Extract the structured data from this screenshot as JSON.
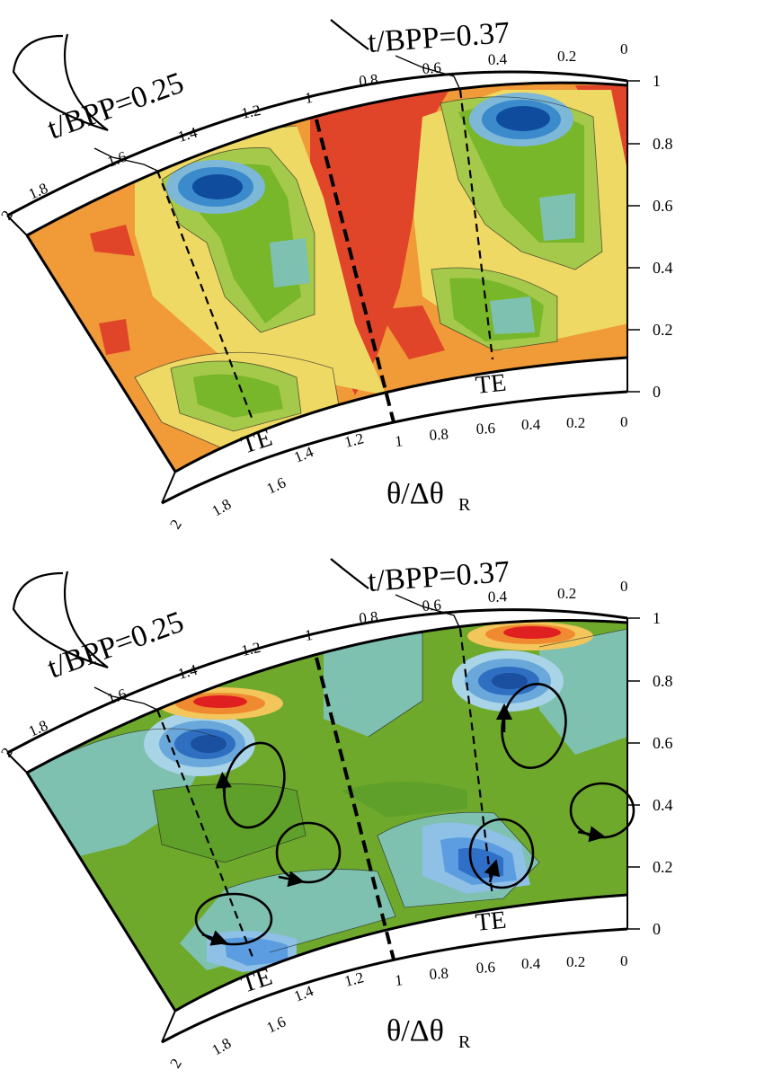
{
  "figure": {
    "panels": [
      {
        "id": "top",
        "pitch_labels": [
          "t/BPP=0.25",
          "t/BPP=0.37"
        ],
        "te_labels": [
          "TE",
          "TE"
        ],
        "axis_title": "θ/Δθ",
        "axis_title_subscript": "R",
        "theta_ticks": [
          "2",
          "1.8",
          "1.6",
          "1.4",
          "1.2",
          "1",
          "0.8",
          "0.6",
          "0.4",
          "0.2",
          "0"
        ],
        "span_ticks": [
          "0",
          "0.2",
          "0.4",
          "0.6",
          "0.8",
          "1"
        ],
        "colors": {
          "high": "#e0452a",
          "mid_high": "#f09a38",
          "mid": "#eed965",
          "mid_low": "#78b72a",
          "low": "#0f4c9e"
        }
      },
      {
        "id": "bottom",
        "pitch_labels": [
          "t/BPP=0.25",
          "t/BPP=0.37"
        ],
        "te_labels": [
          "TE",
          "TE"
        ],
        "axis_title": "θ/Δθ",
        "axis_title_subscript": "R",
        "theta_ticks": [
          "2",
          "1.8",
          "1.6",
          "1.4",
          "1.2",
          "1",
          "0.8",
          "0.6",
          "0.4",
          "0.2",
          "0"
        ],
        "span_ticks": [
          "0",
          "0.2",
          "0.4",
          "0.6",
          "0.8",
          "1"
        ],
        "colors": {
          "background": "#6fa92c",
          "teal": "#7fc1b0",
          "blue": "#1b4fa0",
          "red": "#e02020"
        },
        "vortex_count": 6
      }
    ]
  }
}
